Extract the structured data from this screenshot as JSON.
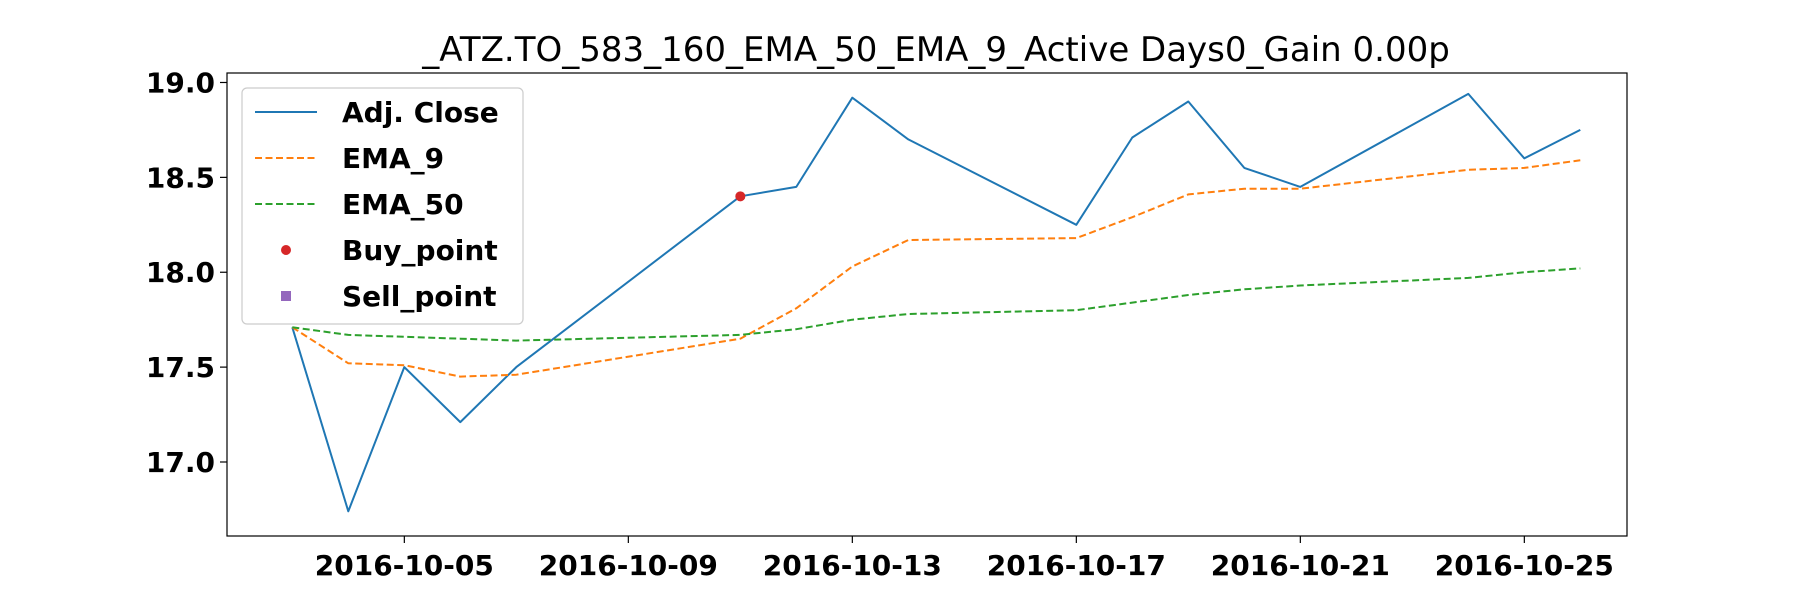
{
  "chart_data": {
    "type": "line",
    "title": "_ATZ.TO_583_160_EMA_50_EMA_9_Active Days0_Gain   0.00p",
    "xlabel": "",
    "ylabel": "",
    "x_axis_type": "date",
    "xlim": [
      "2016-10-01T20:00",
      "2016-10-26T20:00"
    ],
    "ylim": [
      16.61,
      19.05
    ],
    "x_ticks": [
      "2016-10-05",
      "2016-10-09",
      "2016-10-13",
      "2016-10-17",
      "2016-10-21",
      "2016-10-25"
    ],
    "y_ticks": [
      17.0,
      17.5,
      18.0,
      18.5,
      19.0
    ],
    "y_tick_labels": [
      "17.0",
      "17.5",
      "18.0",
      "18.5",
      "19.0"
    ],
    "grid": false,
    "legend_position": "upper-left",
    "series": [
      {
        "name": "Adj. Close",
        "color": "#1f77b4",
        "dash": "solid",
        "points": [
          [
            "2016-10-03",
            17.71
          ],
          [
            "2016-10-04",
            16.74
          ],
          [
            "2016-10-05",
            17.5
          ],
          [
            "2016-10-06",
            17.21
          ],
          [
            "2016-10-07",
            17.5
          ],
          [
            "2016-10-11",
            18.4
          ],
          [
            "2016-10-12",
            18.45
          ],
          [
            "2016-10-13",
            18.92
          ],
          [
            "2016-10-14",
            18.7
          ],
          [
            "2016-10-17",
            18.25
          ],
          [
            "2016-10-18",
            18.71
          ],
          [
            "2016-10-19",
            18.9
          ],
          [
            "2016-10-20",
            18.55
          ],
          [
            "2016-10-21",
            18.45
          ],
          [
            "2016-10-24",
            18.94
          ],
          [
            "2016-10-25",
            18.6
          ],
          [
            "2016-10-26",
            18.75
          ]
        ]
      },
      {
        "name": "EMA_9",
        "color": "#ff7f0e",
        "dash": "dashed",
        "points": [
          [
            "2016-10-03",
            17.71
          ],
          [
            "2016-10-04",
            17.52
          ],
          [
            "2016-10-05",
            17.51
          ],
          [
            "2016-10-06",
            17.45
          ],
          [
            "2016-10-07",
            17.46
          ],
          [
            "2016-10-11",
            17.65
          ],
          [
            "2016-10-12",
            17.81
          ],
          [
            "2016-10-13",
            18.03
          ],
          [
            "2016-10-14",
            18.17
          ],
          [
            "2016-10-17",
            18.18
          ],
          [
            "2016-10-18",
            18.29
          ],
          [
            "2016-10-19",
            18.41
          ],
          [
            "2016-10-20",
            18.44
          ],
          [
            "2016-10-21",
            18.44
          ],
          [
            "2016-10-24",
            18.54
          ],
          [
            "2016-10-25",
            18.55
          ],
          [
            "2016-10-26",
            18.59
          ]
        ]
      },
      {
        "name": "EMA_50",
        "color": "#2ca02c",
        "dash": "dashed",
        "points": [
          [
            "2016-10-03",
            17.71
          ],
          [
            "2016-10-04",
            17.67
          ],
          [
            "2016-10-05",
            17.66
          ],
          [
            "2016-10-06",
            17.65
          ],
          [
            "2016-10-07",
            17.64
          ],
          [
            "2016-10-11",
            17.67
          ],
          [
            "2016-10-12",
            17.7
          ],
          [
            "2016-10-13",
            17.75
          ],
          [
            "2016-10-14",
            17.78
          ],
          [
            "2016-10-17",
            17.8
          ],
          [
            "2016-10-18",
            17.84
          ],
          [
            "2016-10-19",
            17.88
          ],
          [
            "2016-10-20",
            17.91
          ],
          [
            "2016-10-21",
            17.93
          ],
          [
            "2016-10-24",
            17.97
          ],
          [
            "2016-10-25",
            18.0
          ],
          [
            "2016-10-26",
            18.02
          ]
        ]
      }
    ],
    "markers": [
      {
        "name": "Buy_point",
        "color": "#d62728",
        "shape": "circle",
        "points": [
          [
            "2016-10-11",
            18.4
          ]
        ]
      },
      {
        "name": "Sell_point",
        "color": "#9467bd",
        "shape": "square",
        "points": []
      }
    ]
  }
}
